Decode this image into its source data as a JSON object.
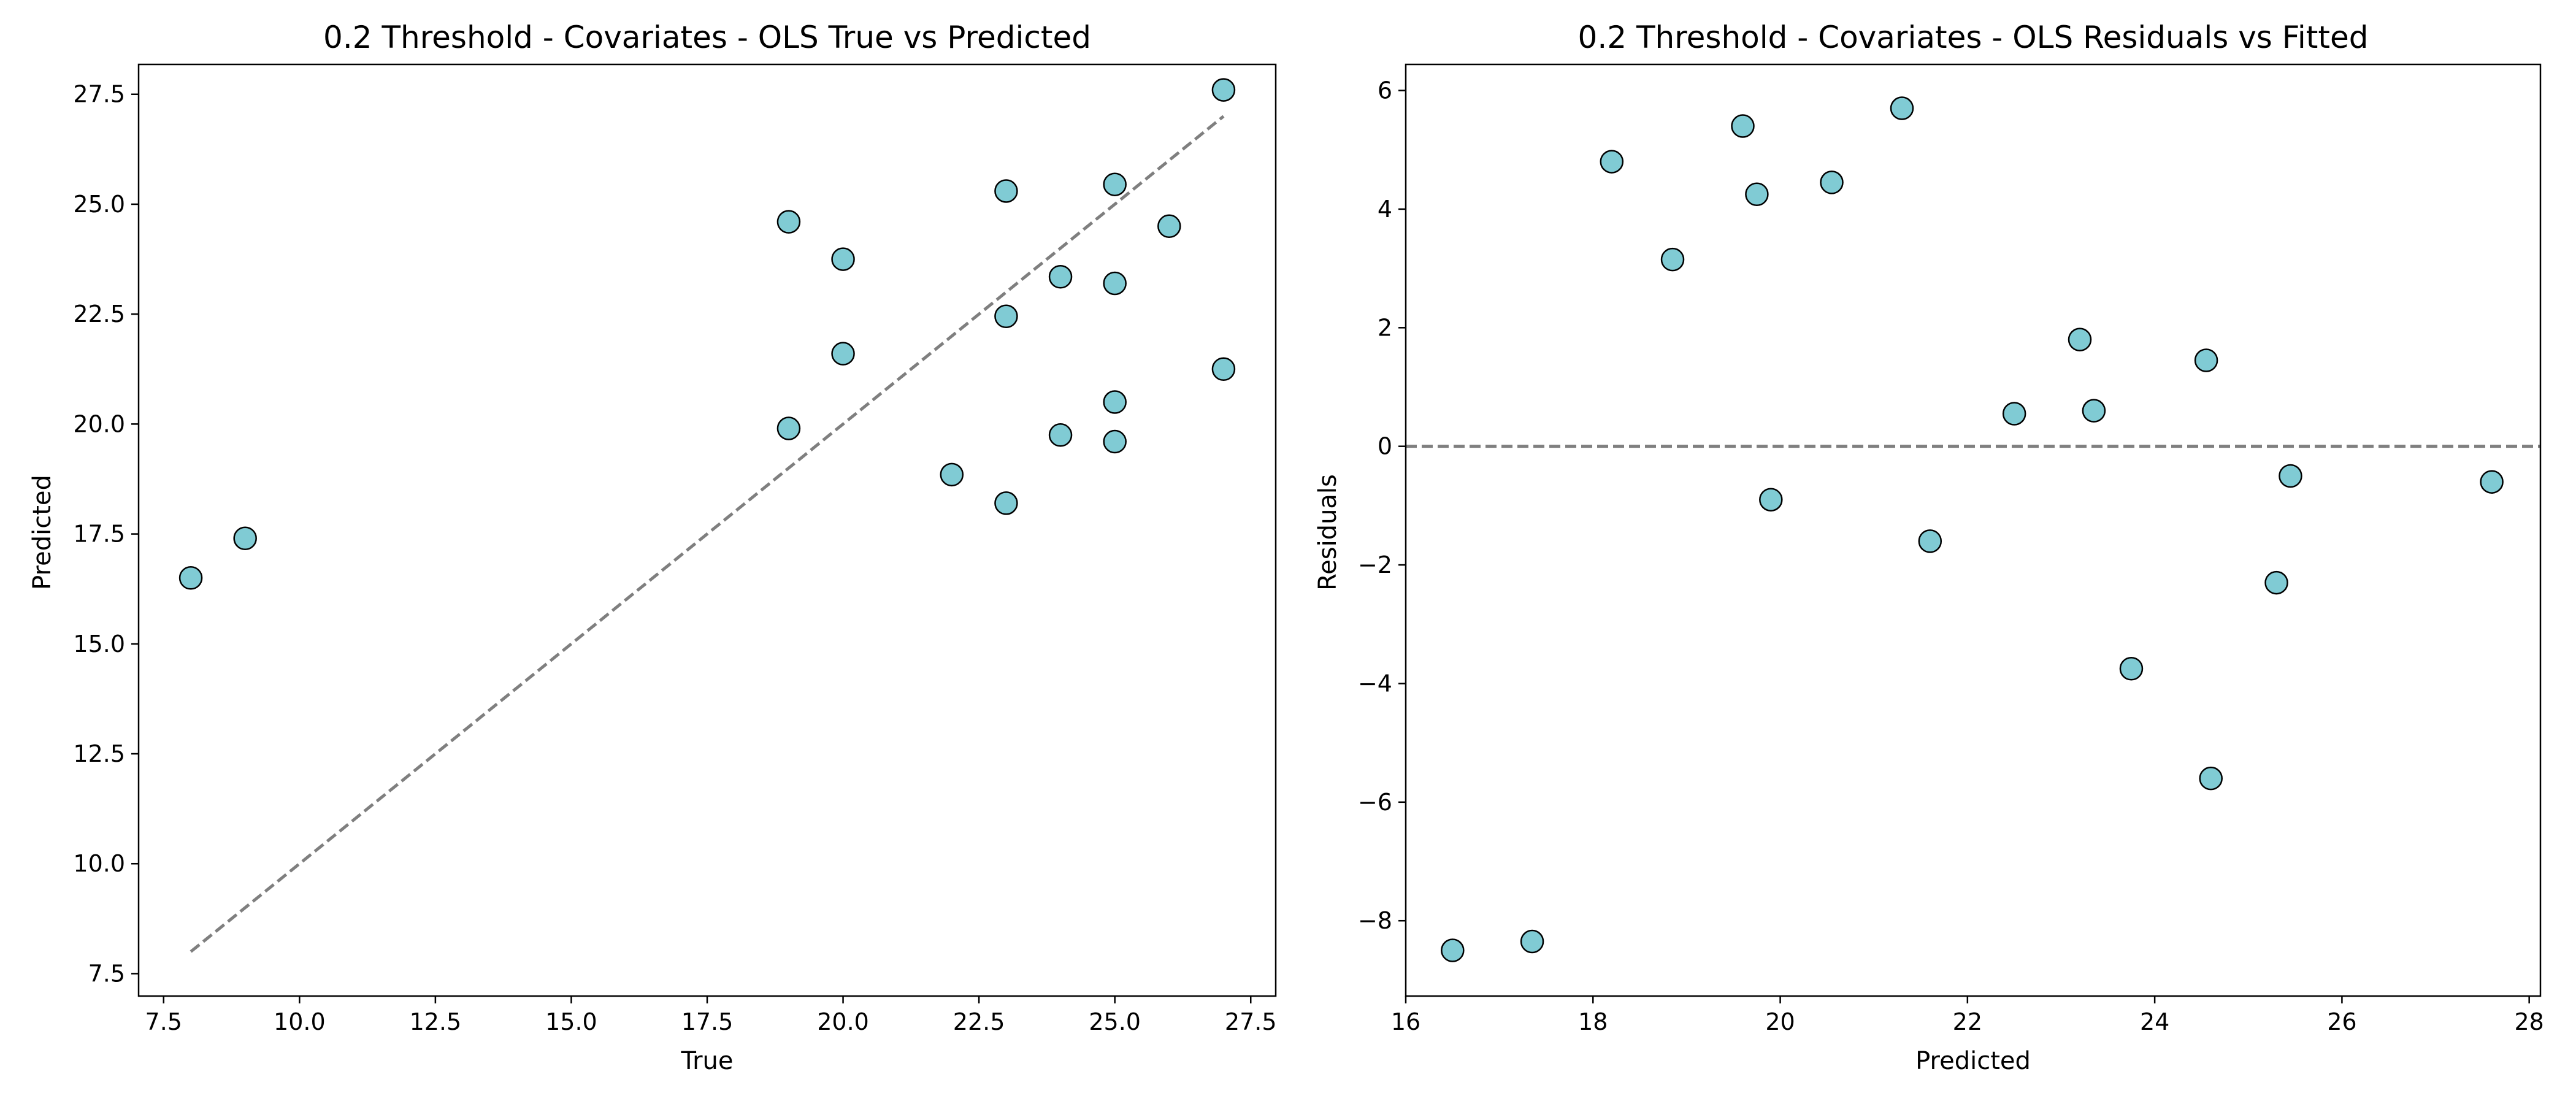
{
  "chart_data": [
    {
      "type": "scatter",
      "title": "0.2 Threshold - Covariates - OLS True vs Predicted",
      "xlabel": "True",
      "ylabel": "Predicted",
      "xlim": [
        7.04,
        27.96
      ],
      "ylim": [
        6.99,
        28.18
      ],
      "xticks": [
        7.5,
        10.0,
        12.5,
        15.0,
        17.5,
        20.0,
        22.5,
        25.0,
        27.5
      ],
      "yticks": [
        7.5,
        10.0,
        12.5,
        15.0,
        17.5,
        20.0,
        22.5,
        25.0,
        27.5
      ],
      "grid": false,
      "reference_line": {
        "style": "dashed",
        "x": [
          8,
          27
        ],
        "y": [
          8,
          27
        ]
      },
      "series": [
        {
          "points": [
            [
              8,
              16.5
            ],
            [
              9,
              17.4
            ],
            [
              19,
              24.6
            ],
            [
              19,
              19.9
            ],
            [
              20,
              23.75
            ],
            [
              20,
              21.6
            ],
            [
              22,
              18.85
            ],
            [
              23,
              25.3
            ],
            [
              23,
              22.45
            ],
            [
              23,
              18.2
            ],
            [
              24,
              23.35
            ],
            [
              24,
              19.75
            ],
            [
              25,
              25.45
            ],
            [
              25,
              23.2
            ],
            [
              25,
              20.5
            ],
            [
              25,
              19.6
            ],
            [
              26,
              24.5
            ],
            [
              27,
              27.6
            ],
            [
              27,
              21.25
            ]
          ]
        }
      ]
    },
    {
      "type": "scatter",
      "title": "0.2 Threshold - Covariates - OLS Residuals vs Fitted",
      "xlabel": "Predicted",
      "ylabel": "Residuals",
      "xlim": [
        16.0,
        28.12
      ],
      "ylim": [
        -9.27,
        6.44
      ],
      "xticks": [
        16,
        18,
        20,
        22,
        24,
        26,
        28
      ],
      "yticks": [
        -8,
        -6,
        -4,
        -2,
        0,
        2,
        4,
        6
      ],
      "grid": false,
      "reference_line": {
        "style": "dashed",
        "y": 0
      },
      "series": [
        {
          "points": [
            [
              16.5,
              -8.5
            ],
            [
              17.35,
              -8.35
            ],
            [
              18.2,
              4.8
            ],
            [
              18.85,
              3.15
            ],
            [
              19.6,
              5.4
            ],
            [
              19.75,
              4.25
            ],
            [
              19.9,
              -0.9
            ],
            [
              20.55,
              4.45
            ],
            [
              21.3,
              5.7
            ],
            [
              21.6,
              -1.6
            ],
            [
              22.5,
              0.55
            ],
            [
              23.2,
              1.8
            ],
            [
              23.35,
              0.6
            ],
            [
              23.75,
              -3.75
            ],
            [
              24.55,
              1.45
            ],
            [
              24.6,
              -5.6
            ],
            [
              25.3,
              -2.3
            ],
            [
              25.45,
              -0.5
            ],
            [
              27.6,
              -0.6
            ]
          ]
        }
      ]
    }
  ],
  "style": {
    "marker_fill": "#80cbd4",
    "marker_edge": "#000000",
    "reference_line_color": "#7f7f7f",
    "axes_color": "#000000"
  }
}
